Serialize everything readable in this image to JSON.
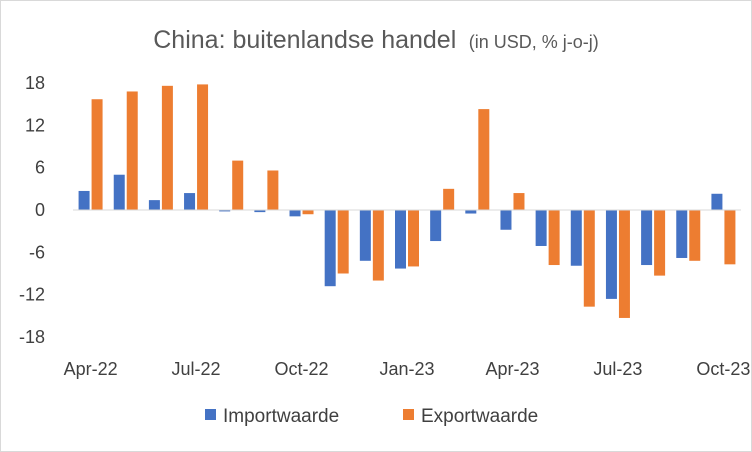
{
  "chart_data": {
    "type": "bar",
    "title": "China: buitenlandse handel",
    "subtitle": "(in USD, % j-o-j)",
    "categories": [
      "Apr-22",
      "May-22",
      "Jun-22",
      "Jul-22",
      "Aug-22",
      "Sep-22",
      "Oct-22",
      "Nov-22",
      "Dec-22",
      "Jan-23",
      "Feb-23",
      "Mar-23",
      "Apr-23",
      "May-23",
      "Jun-23",
      "Jul-23",
      "Aug-23",
      "Sep-23",
      "Oct-23"
    ],
    "x_tick_labels": [
      "Apr-22",
      "Jul-22",
      "Oct-22",
      "Jan-23",
      "Apr-23",
      "Jul-23",
      "Oct-23"
    ],
    "series": [
      {
        "name": "Importwaarde",
        "color": "#4472c4",
        "values": [
          2.7,
          5.0,
          1.4,
          2.4,
          -0.2,
          -0.3,
          -0.9,
          -10.8,
          -7.2,
          -8.3,
          -4.4,
          -0.5,
          -2.8,
          -5.1,
          -7.9,
          -12.6,
          -7.8,
          -6.8,
          2.3
        ]
      },
      {
        "name": "Exportwaarde",
        "color": "#ed7d31",
        "values": [
          15.7,
          16.8,
          17.6,
          17.8,
          7.0,
          5.6,
          -0.6,
          -9.0,
          -10.0,
          -8.0,
          3.0,
          14.3,
          2.4,
          -7.8,
          -13.7,
          -15.3,
          -9.3,
          -7.2,
          -7.7
        ]
      }
    ],
    "y_ticks": [
      18,
      12,
      6,
      0,
      -6,
      -12,
      -18
    ],
    "ylim": [
      -18,
      18
    ],
    "legend": "bottom",
    "grid": false
  }
}
